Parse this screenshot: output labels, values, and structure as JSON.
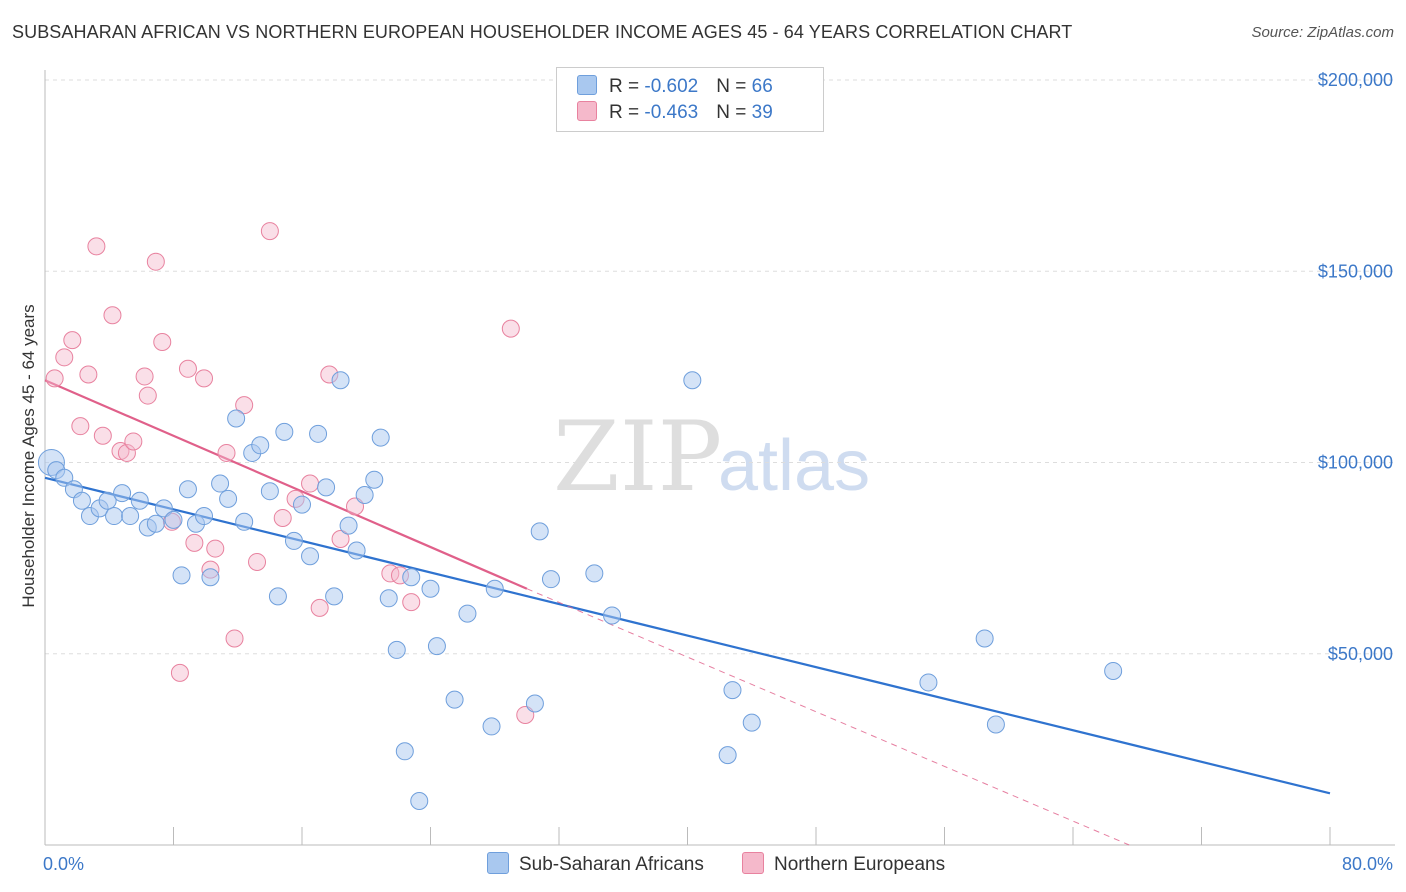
{
  "header": {
    "title": "SUBSAHARAN AFRICAN VS NORTHERN EUROPEAN HOUSEHOLDER INCOME AGES 45 - 64 YEARS CORRELATION CHART",
    "source": "Source: ZipAtlas.com"
  },
  "watermark": {
    "zip": "ZIP",
    "atlas": "atlas"
  },
  "legend": {
    "rows": [
      {
        "r_label": "R = ",
        "r_value": "-0.602",
        "n_label": "N = ",
        "n_value": "66"
      },
      {
        "r_label": "R = ",
        "r_value": "-0.463",
        "n_label": "N = ",
        "n_value": "39"
      }
    ]
  },
  "colors": {
    "blue_fill": "#a9c8ef",
    "blue_stroke": "#6f9fdc",
    "blue_line": "#2f73cf",
    "pink_fill": "#f5b9cb",
    "pink_stroke": "#e8829f",
    "pink_line": "#e0608a",
    "grid": "#dddddd",
    "axis_text": "#3c78c8"
  },
  "chart_data": {
    "type": "scatter",
    "title": "SUBSAHARAN AFRICAN VS NORTHERN EUROPEAN HOUSEHOLDER INCOME AGES 45 - 64 YEARS CORRELATION CHART",
    "xlabel": "",
    "ylabel": "Householder Income Ages 45 - 64 years",
    "x_unit": "%",
    "xlim": [
      0,
      80
    ],
    "ylim": [
      0,
      200000
    ],
    "x_tick_labels": [
      "0.0%",
      "80.0%"
    ],
    "y_ticks": [
      50000,
      100000,
      150000,
      200000
    ],
    "y_tick_labels": [
      "$50,000",
      "$100,000",
      "$150,000",
      "$200,000"
    ],
    "grid": true,
    "legend_position": "bottom-center",
    "series": [
      {
        "name": "Sub-Saharan Africans",
        "color": "#a9c8ef",
        "r": -0.602,
        "n": 66,
        "trend": {
          "x": [
            0,
            80
          ],
          "y": [
            96000,
            13500
          ]
        },
        "points": [
          [
            0.4,
            100000
          ],
          [
            0.7,
            98000
          ],
          [
            1.2,
            96000
          ],
          [
            1.8,
            93000
          ],
          [
            2.3,
            90000
          ],
          [
            2.8,
            86000
          ],
          [
            3.4,
            88000
          ],
          [
            3.9,
            90000
          ],
          [
            4.3,
            86000
          ],
          [
            4.8,
            92000
          ],
          [
            5.3,
            86000
          ],
          [
            5.9,
            90000
          ],
          [
            6.4,
            83000
          ],
          [
            6.9,
            84000
          ],
          [
            7.4,
            88000
          ],
          [
            8.0,
            85000
          ],
          [
            8.5,
            70500
          ],
          [
            8.9,
            93000
          ],
          [
            9.4,
            84000
          ],
          [
            9.9,
            86000
          ],
          [
            10.3,
            70000
          ],
          [
            10.9,
            94500
          ],
          [
            11.4,
            90500
          ],
          [
            11.9,
            111500
          ],
          [
            12.4,
            84500
          ],
          [
            12.9,
            102500
          ],
          [
            13.4,
            104500
          ],
          [
            14.0,
            92500
          ],
          [
            14.5,
            65000
          ],
          [
            14.9,
            108000
          ],
          [
            15.5,
            79500
          ],
          [
            16.0,
            89000
          ],
          [
            16.5,
            75500
          ],
          [
            17.0,
            107500
          ],
          [
            17.5,
            93500
          ],
          [
            18.0,
            65000
          ],
          [
            18.4,
            121500
          ],
          [
            18.9,
            83500
          ],
          [
            19.4,
            77000
          ],
          [
            19.9,
            91500
          ],
          [
            20.5,
            95500
          ],
          [
            20.9,
            106500
          ],
          [
            21.4,
            64500
          ],
          [
            21.9,
            51000
          ],
          [
            22.4,
            24500
          ],
          [
            22.8,
            70000
          ],
          [
            23.3,
            11500
          ],
          [
            24.0,
            67000
          ],
          [
            24.4,
            52000
          ],
          [
            25.5,
            38000
          ],
          [
            26.3,
            60500
          ],
          [
            28.0,
            67000
          ],
          [
            27.8,
            31000
          ],
          [
            30.5,
            37000
          ],
          [
            30.8,
            82000
          ],
          [
            31.5,
            69500
          ],
          [
            34.2,
            71000
          ],
          [
            35.3,
            60000
          ],
          [
            40.3,
            121500
          ],
          [
            42.5,
            23500
          ],
          [
            42.8,
            40500
          ],
          [
            44.0,
            32000
          ],
          [
            55.0,
            42500
          ],
          [
            58.5,
            54000
          ],
          [
            59.2,
            31500
          ],
          [
            66.5,
            45500
          ]
        ]
      },
      {
        "name": "Northern Europeans",
        "color": "#f5b9cb",
        "r": -0.463,
        "n": 39,
        "trend": {
          "x": [
            0,
            30
          ],
          "y": [
            121500,
            67000
          ]
        },
        "trend_extended": {
          "x": [
            30,
            67.5
          ],
          "y": [
            67000,
            0
          ]
        },
        "points": [
          [
            0.6,
            122000
          ],
          [
            1.2,
            127500
          ],
          [
            1.7,
            132000
          ],
          [
            2.2,
            109500
          ],
          [
            2.7,
            123000
          ],
          [
            3.2,
            156500
          ],
          [
            3.6,
            107000
          ],
          [
            4.2,
            138500
          ],
          [
            4.7,
            103000
          ],
          [
            5.1,
            102500
          ],
          [
            5.5,
            105500
          ],
          [
            6.2,
            122500
          ],
          [
            6.4,
            117500
          ],
          [
            6.9,
            152500
          ],
          [
            7.3,
            131500
          ],
          [
            7.9,
            84500
          ],
          [
            8.4,
            45000
          ],
          [
            8.9,
            124500
          ],
          [
            9.3,
            79000
          ],
          [
            9.9,
            122000
          ],
          [
            10.3,
            72000
          ],
          [
            10.6,
            77500
          ],
          [
            11.3,
            102500
          ],
          [
            11.8,
            54000
          ],
          [
            12.4,
            115000
          ],
          [
            13.2,
            74000
          ],
          [
            14.0,
            160500
          ],
          [
            14.8,
            85500
          ],
          [
            15.6,
            90500
          ],
          [
            16.5,
            94500
          ],
          [
            17.1,
            62000
          ],
          [
            17.7,
            123000
          ],
          [
            18.4,
            80000
          ],
          [
            19.3,
            88500
          ],
          [
            21.5,
            71000
          ],
          [
            22.1,
            70500
          ],
          [
            22.8,
            63500
          ],
          [
            29.0,
            135000
          ],
          [
            29.9,
            34000
          ]
        ]
      }
    ]
  },
  "bottom_legend": {
    "items": [
      {
        "label": "Sub-Saharan Africans"
      },
      {
        "label": "Northern Europeans"
      }
    ]
  }
}
